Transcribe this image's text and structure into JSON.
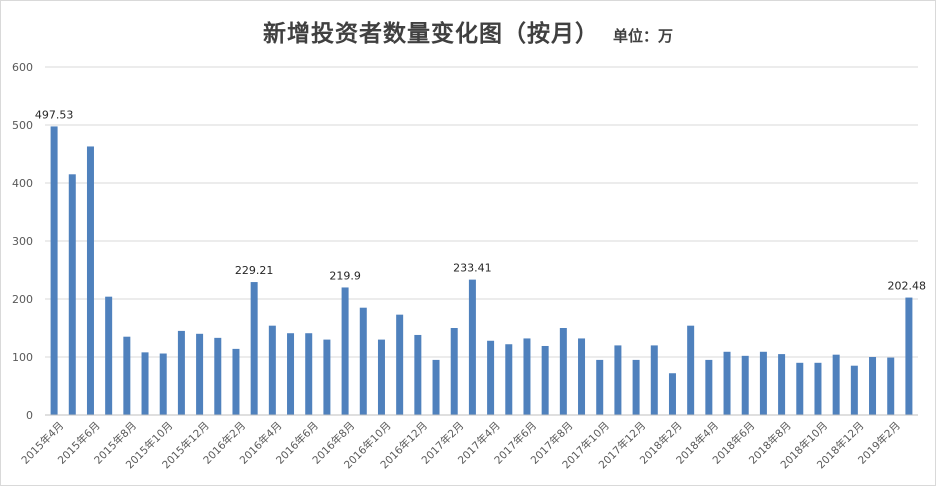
{
  "chart_data": {
    "type": "bar",
    "title": "新增投资者数量变化图（按月）",
    "subtitle": "单位：万",
    "xlabel": "",
    "ylabel": "",
    "ylim": [
      0,
      600
    ],
    "yticks": [
      0,
      100,
      200,
      300,
      400,
      500,
      600
    ],
    "grid": true,
    "legend": "none",
    "bar_color": "#4f81bd",
    "categories": [
      "2015年4月",
      "2015年5月",
      "2015年6月",
      "2015年7月",
      "2015年8月",
      "2015年9月",
      "2015年10月",
      "2015年11月",
      "2015年12月",
      "2016年1月",
      "2016年2月",
      "2016年3月",
      "2016年4月",
      "2016年5月",
      "2016年6月",
      "2016年7月",
      "2016年8月",
      "2016年9月",
      "2016年10月",
      "2016年11月",
      "2016年12月",
      "2017年1月",
      "2017年2月",
      "2017年3月",
      "2017年4月",
      "2017年5月",
      "2017年6月",
      "2017年7月",
      "2017年8月",
      "2017年9月",
      "2017年10月",
      "2017年11月",
      "2017年12月",
      "2018年1月",
      "2018年2月",
      "2018年3月",
      "2018年4月",
      "2018年5月",
      "2018年6月",
      "2018年7月",
      "2018年8月",
      "2018年9月",
      "2018年10月",
      "2018年11月",
      "2018年12月",
      "2019年1月",
      "2019年2月",
      "2019年3月"
    ],
    "visible_tick_labels": [
      "2015年4月",
      "2015年6月",
      "2015年8月",
      "2015年10月",
      "2015年12月",
      "2016年2月",
      "2016年4月",
      "2016年6月",
      "2016年8月",
      "2016年10月",
      "2016年12月",
      "2017年2月",
      "2017年4月",
      "2017年6月",
      "2017年8月",
      "2017年10月",
      "2017年12月",
      "2018年2月",
      "2018年4月",
      "2018年6月",
      "2018年8月",
      "2018年10月",
      "2018年12月",
      "2019年2月"
    ],
    "values": [
      497.53,
      415,
      463,
      204,
      135,
      108,
      106,
      145,
      140,
      133,
      114,
      229.21,
      154,
      141,
      141,
      130,
      219.9,
      185,
      130,
      173,
      138,
      95,
      150,
      233.41,
      128,
      122,
      132,
      119,
      150,
      132,
      95,
      120,
      95,
      120,
      72,
      154,
      95,
      109,
      102,
      109,
      105,
      90,
      90,
      104,
      85,
      100,
      99,
      202.48
    ],
    "data_labels": [
      {
        "category": "2015年4月",
        "text": "497.53"
      },
      {
        "category": "2016年3月",
        "text": "229.21"
      },
      {
        "category": "2016年8月",
        "text": "219.9"
      },
      {
        "category": "2017年3月",
        "text": "233.41"
      },
      {
        "category": "2019年3月",
        "text": "202.48"
      }
    ]
  }
}
